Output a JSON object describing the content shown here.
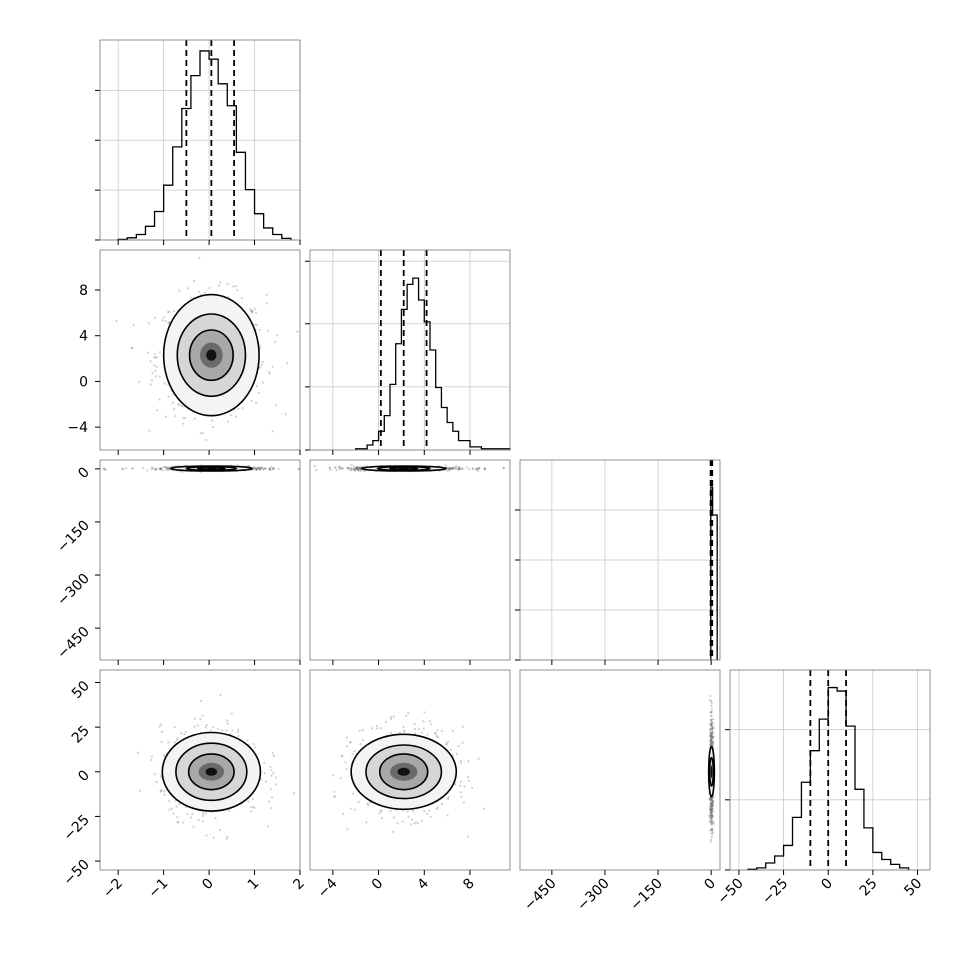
{
  "chart_data": {
    "type": "corner",
    "title": "",
    "parameters": [
      {
        "name": "",
        "range": [
          -2.4,
          2.0
        ],
        "ticks": [
          -2,
          -1,
          0,
          1,
          2
        ],
        "tick_labels": [
          "−2",
          "−1",
          "0",
          "1",
          "2"
        ],
        "quantiles": [
          -0.5,
          0.05,
          0.55
        ]
      },
      {
        "name": "",
        "range": [
          -6.0,
          11.5
        ],
        "ticks": [
          -4,
          0,
          4,
          8
        ],
        "tick_labels": [
          "−4",
          "0",
          "4",
          "8"
        ],
        "quantiles": [
          0.2,
          2.2,
          4.2
        ]
      },
      {
        "name": "",
        "range": [
          -540,
          25
        ],
        "ticks": [
          -450,
          -300,
          -150,
          0
        ],
        "tick_labels": [
          "−450",
          "−300",
          "−150",
          "0"
        ],
        "quantiles": [
          -1.5,
          0.8,
          3.0
        ]
      },
      {
        "name": "",
        "range": [
          -55,
          57
        ],
        "ticks": [
          -50,
          -25,
          0,
          25,
          50
        ],
        "tick_labels": [
          "−50",
          "−25",
          "0",
          "25",
          "50"
        ],
        "quantiles": [
          -10,
          0,
          10
        ]
      }
    ],
    "histograms": [
      {
        "param": 0,
        "bin_edges": [
          -2.0,
          -1.8,
          -1.6,
          -1.4,
          -1.2,
          -1.0,
          -0.8,
          -0.6,
          -0.4,
          -0.2,
          0.0,
          0.2,
          0.4,
          0.6,
          0.8,
          1.0,
          1.2,
          1.4,
          1.6,
          1.8
        ],
        "counts": [
          1,
          4,
          10,
          25,
          52,
          100,
          170,
          240,
          300,
          345,
          330,
          285,
          245,
          160,
          92,
          48,
          22,
          10,
          3
        ],
        "ylim": [
          0,
          365
        ],
        "yticks": [
          0,
          91,
          182,
          273
        ]
      },
      {
        "param": 1,
        "bin_edges": [
          -2.0,
          -1.0,
          -0.5,
          0.0,
          0.5,
          1.0,
          1.5,
          2.0,
          2.5,
          3.0,
          3.5,
          4.0,
          4.5,
          5.0,
          5.5,
          6.0,
          6.5,
          7.0,
          8.0,
          9.0,
          11.5
        ],
        "counts": [
          2,
          8,
          15,
          30,
          55,
          105,
          170,
          225,
          265,
          275,
          240,
          205,
          160,
          100,
          68,
          44,
          30,
          15,
          5,
          2
        ],
        "ylim": [
          0,
          320
        ],
        "yticks": [
          0,
          101,
          202,
          302
        ]
      },
      {
        "param": 2,
        "bin_edges": [
          -1.0,
          4.0,
          17.0
        ],
        "counts": [
          1730,
          1450
        ],
        "ylim": [
          0,
          2000
        ],
        "yticks": [
          0,
          500,
          1000,
          1500
        ]
      },
      {
        "param": 3,
        "bin_edges": [
          -45,
          -40,
          -35,
          -30,
          -25,
          -20,
          -15,
          -10,
          -5,
          0,
          5,
          10,
          15,
          20,
          25,
          30,
          35,
          40,
          45
        ],
        "counts": [
          1,
          3,
          10,
          20,
          35,
          75,
          125,
          170,
          215,
          260,
          255,
          205,
          115,
          60,
          25,
          15,
          8,
          3
        ],
        "ylim": [
          0,
          285
        ],
        "yticks": [
          0,
          100,
          200
        ]
      }
    ],
    "joint": [
      {
        "x": 0,
        "y": 1,
        "center": [
          0.05,
          2.3
        ],
        "radii": [
          [
            0.25,
            1.1
          ],
          [
            0.48,
            2.2
          ],
          [
            0.75,
            3.6
          ],
          [
            1.05,
            5.3
          ]
        ],
        "scatter_spread": [
          0.6,
          2.6
        ]
      },
      {
        "x": 0,
        "y": 2,
        "center": [
          0.05,
          1.0
        ],
        "radii": [
          [
            0.3,
            3
          ],
          [
            0.55,
            5
          ],
          [
            0.9,
            7
          ]
        ],
        "scatter_spread": [
          0.5,
          3
        ]
      },
      {
        "x": 1,
        "y": 2,
        "center": [
          2.2,
          1.0
        ],
        "radii": [
          [
            1.2,
            3
          ],
          [
            2.3,
            5
          ],
          [
            3.7,
            7
          ]
        ],
        "scatter_spread": [
          2.3,
          3
        ]
      },
      {
        "x": 0,
        "y": 3,
        "center": [
          0.05,
          0.0
        ],
        "radii": [
          [
            0.28,
            5
          ],
          [
            0.5,
            10
          ],
          [
            0.78,
            16
          ],
          [
            1.08,
            22
          ]
        ],
        "scatter_spread": [
          0.55,
          12
        ]
      },
      {
        "x": 1,
        "y": 3,
        "center": [
          2.2,
          0.0
        ],
        "radii": [
          [
            1.2,
            5
          ],
          [
            2.1,
            10
          ],
          [
            3.3,
            15
          ],
          [
            4.6,
            21
          ]
        ],
        "scatter_spread": [
          2.2,
          12
        ]
      },
      {
        "x": 2,
        "y": 3,
        "center": [
          1.0,
          0.0
        ],
        "radii": [
          [
            5,
            8
          ],
          [
            8,
            14
          ]
        ],
        "scatter_spread": [
          4,
          13
        ]
      }
    ],
    "grid": true
  }
}
